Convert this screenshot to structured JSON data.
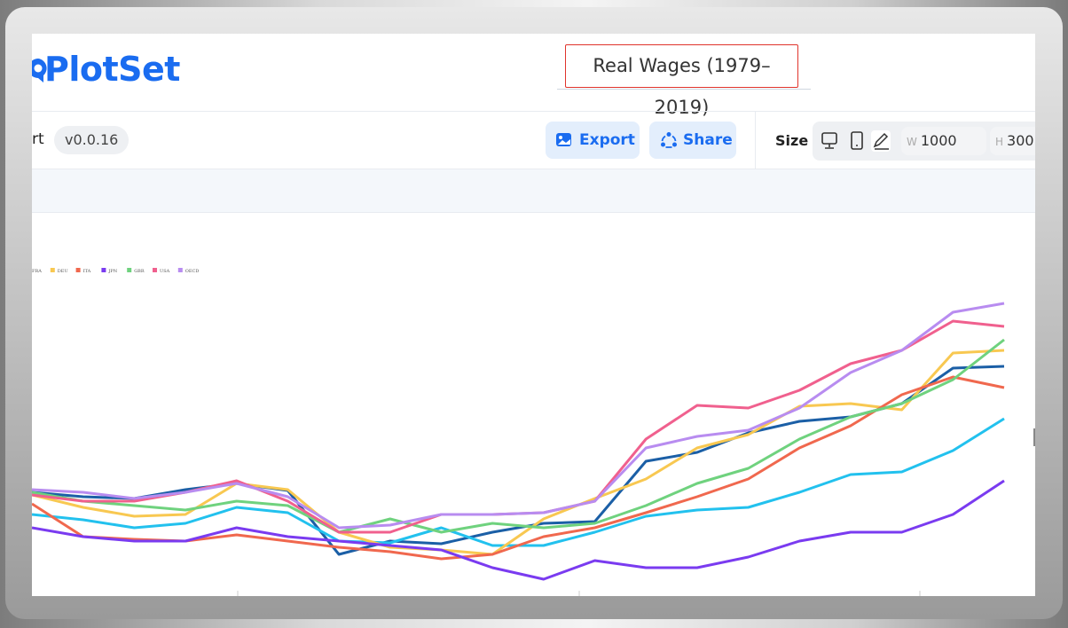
{
  "header": {
    "logo": "PlotSet",
    "title": "Real Wages (1979–2019)"
  },
  "toolbar": {
    "tab": "rt",
    "version": "v0.0.16",
    "export": "Export",
    "share": "Share",
    "size": "Size",
    "width_label": "W",
    "width": "1000",
    "height_label": "H",
    "height": "300"
  },
  "chart_data": {
    "type": "line",
    "ylim": [
      0,
      380
    ],
    "series": [
      {
        "color": "#1b5fa6",
        "values": [
          117,
          112,
          110,
          120,
          127,
          119,
          47,
          62,
          59,
          72,
          82,
          84,
          152,
          162,
          184,
          197,
          202,
          217,
          257,
          259
        ]
      },
      {
        "name": "FRA",
        "color": "#22c1ee",
        "values": [
          92,
          86,
          77,
          82,
          100,
          94,
          62,
          60,
          77,
          57,
          57,
          72,
          90,
          97,
          100,
          117,
          137,
          140,
          164,
          200
        ]
      },
      {
        "name": "DEU",
        "color": "#f8c851",
        "values": [
          114,
          100,
          90,
          92,
          127,
          120,
          72,
          55,
          52,
          47,
          87,
          110,
          132,
          167,
          182,
          214,
          217,
          210,
          274,
          277
        ]
      },
      {
        "name": "ITA",
        "color": "#f0684e",
        "values": [
          104,
          67,
          64,
          62,
          69,
          62,
          55,
          50,
          42,
          47,
          67,
          77,
          94,
          112,
          132,
          167,
          192,
          227,
          247,
          235
        ]
      },
      {
        "name": "JPN",
        "color": "#7a3bf0",
        "values": [
          77,
          67,
          62,
          62,
          77,
          67,
          62,
          57,
          52,
          32,
          19,
          40,
          32,
          32,
          44,
          62,
          72,
          72,
          92,
          130
        ]
      },
      {
        "name": "GBR",
        "color": "#6fd27e",
        "values": [
          117,
          107,
          102,
          97,
          107,
          102,
          72,
          87,
          72,
          82,
          77,
          82,
          102,
          127,
          144,
          177,
          202,
          217,
          244,
          289
        ]
      },
      {
        "name": "USA",
        "color": "#f0608e",
        "values": [
          114,
          107,
          107,
          117,
          130,
          107,
          72,
          72,
          92,
          92,
          94,
          107,
          177,
          215,
          212,
          232,
          262,
          277,
          310,
          304
        ]
      },
      {
        "name": "OECD",
        "color": "#b88cf0",
        "values": [
          120,
          117,
          110,
          117,
          127,
          112,
          77,
          80,
          92,
          92,
          94,
          107,
          167,
          180,
          187,
          212,
          252,
          277,
          320,
          330
        ]
      }
    ]
  }
}
